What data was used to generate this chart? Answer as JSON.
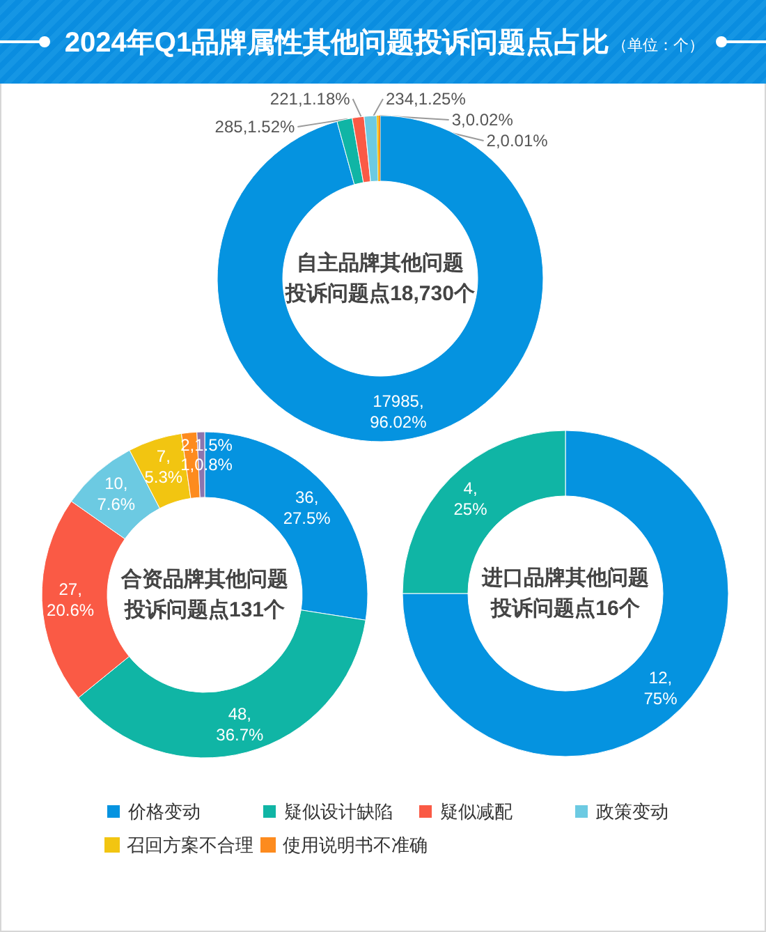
{
  "chart_data": {
    "type": "donut",
    "title": "2024年Q1品牌属性其他问题投诉问题点占比",
    "subtitle": "（单位：个）",
    "categories": [
      "价格变动",
      "疑似设计缺陷",
      "疑似减配",
      "政策变动",
      "召回方案不合理",
      "使用说明书不准确",
      null
    ],
    "colors": [
      "#0593e0",
      "#10b5a5",
      "#fa5a45",
      "#6ccae2",
      "#f2c511",
      "#fd8b1e",
      "#8b75ae"
    ],
    "series": [
      {
        "name": "自主品牌其他问题投诉问题点18,730个",
        "values": [
          17985,
          285,
          221,
          234,
          3,
          2,
          null
        ],
        "value_labels": [
          "17985,\n96.02%",
          "285,1.52%",
          "221,1.18%",
          "234,1.25%",
          "3,0.02%",
          "2,0.01%",
          null
        ]
      },
      {
        "name": "合资品牌其他问题投诉问题点131个",
        "values": [
          36,
          48,
          27,
          10,
          7,
          2,
          1
        ],
        "value_labels": [
          "36,\n27.5%",
          "48,\n36.7%",
          "27,\n20.6%",
          "10,\n7.6%",
          "7,\n5.3%",
          "2,1.5%",
          "1,0.8%"
        ]
      },
      {
        "name": "进口品牌其他问题投诉问题点16个",
        "values": [
          12,
          4,
          null,
          null,
          null,
          null,
          null
        ],
        "value_labels": [
          "12,\n75%",
          "4,\n25%",
          null,
          null,
          null,
          null,
          null
        ]
      }
    ],
    "legend": "bottom"
  }
}
